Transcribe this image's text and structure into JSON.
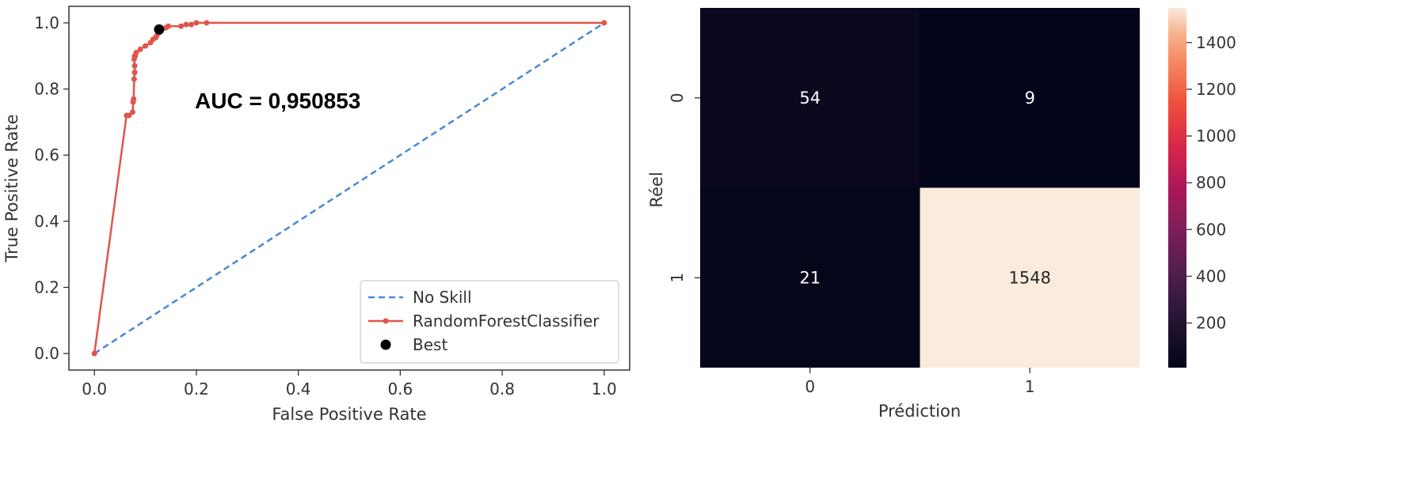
{
  "chart_data": [
    {
      "type": "line",
      "xlabel": "False Positive Rate",
      "ylabel": "True Positive Rate",
      "xlim": [
        -0.05,
        1.05
      ],
      "ylim": [
        -0.05,
        1.05
      ],
      "xticks": [
        "0.0",
        "0.2",
        "0.4",
        "0.6",
        "0.8",
        "1.0"
      ],
      "yticks": [
        "0.0",
        "0.2",
        "0.4",
        "0.6",
        "0.8",
        "1.0"
      ],
      "annotation": "AUC = 0,950853",
      "legend_position": "bottom-right",
      "grid": false,
      "series": [
        {
          "name": "No Skill",
          "style": "dashed",
          "color": "#4a86d8",
          "x": [
            0,
            1
          ],
          "y": [
            0,
            1
          ]
        },
        {
          "name": "RandomForestClassifier",
          "style": "solid-with-markers",
          "color": "#e0554a",
          "x": [
            0,
            0.063,
            0.068,
            0.075,
            0.076,
            0.077,
            0.078,
            0.079,
            0.079,
            0.078,
            0.079,
            0.08,
            0.082,
            0.09,
            0.1,
            0.11,
            0.115,
            0.12,
            0.122,
            0.127,
            0.13,
            0.14,
            0.145,
            0.17,
            0.18,
            0.19,
            0.2,
            0.22,
            1.0
          ],
          "y": [
            0,
            0.72,
            0.72,
            0.73,
            0.76,
            0.77,
            0.83,
            0.85,
            0.87,
            0.89,
            0.9,
            0.9,
            0.91,
            0.92,
            0.93,
            0.94,
            0.95,
            0.955,
            0.96,
            0.97,
            0.98,
            0.985,
            0.99,
            0.99,
            0.995,
            0.995,
            1.0,
            1.0,
            1.0
          ]
        },
        {
          "name": "Best",
          "style": "point",
          "color": "#000000",
          "x": [
            0.127
          ],
          "y": [
            0.98
          ]
        }
      ]
    },
    {
      "type": "heatmap",
      "xlabel": "Prédiction",
      "ylabel": "Réel",
      "x_categories": [
        "0",
        "1"
      ],
      "y_categories": [
        "0",
        "1"
      ],
      "values": [
        [
          54,
          9
        ],
        [
          21,
          1548
        ]
      ],
      "cell_text": [
        [
          "54",
          "9"
        ],
        [
          "21",
          "1548"
        ]
      ],
      "colorbar": {
        "ticks": [
          "200",
          "400",
          "600",
          "800",
          "1000",
          "1200",
          "1400"
        ],
        "tick_values": [
          200,
          400,
          600,
          800,
          1000,
          1200,
          1400
        ],
        "min": 9,
        "max": 1548,
        "colormap": "rocket"
      }
    }
  ]
}
